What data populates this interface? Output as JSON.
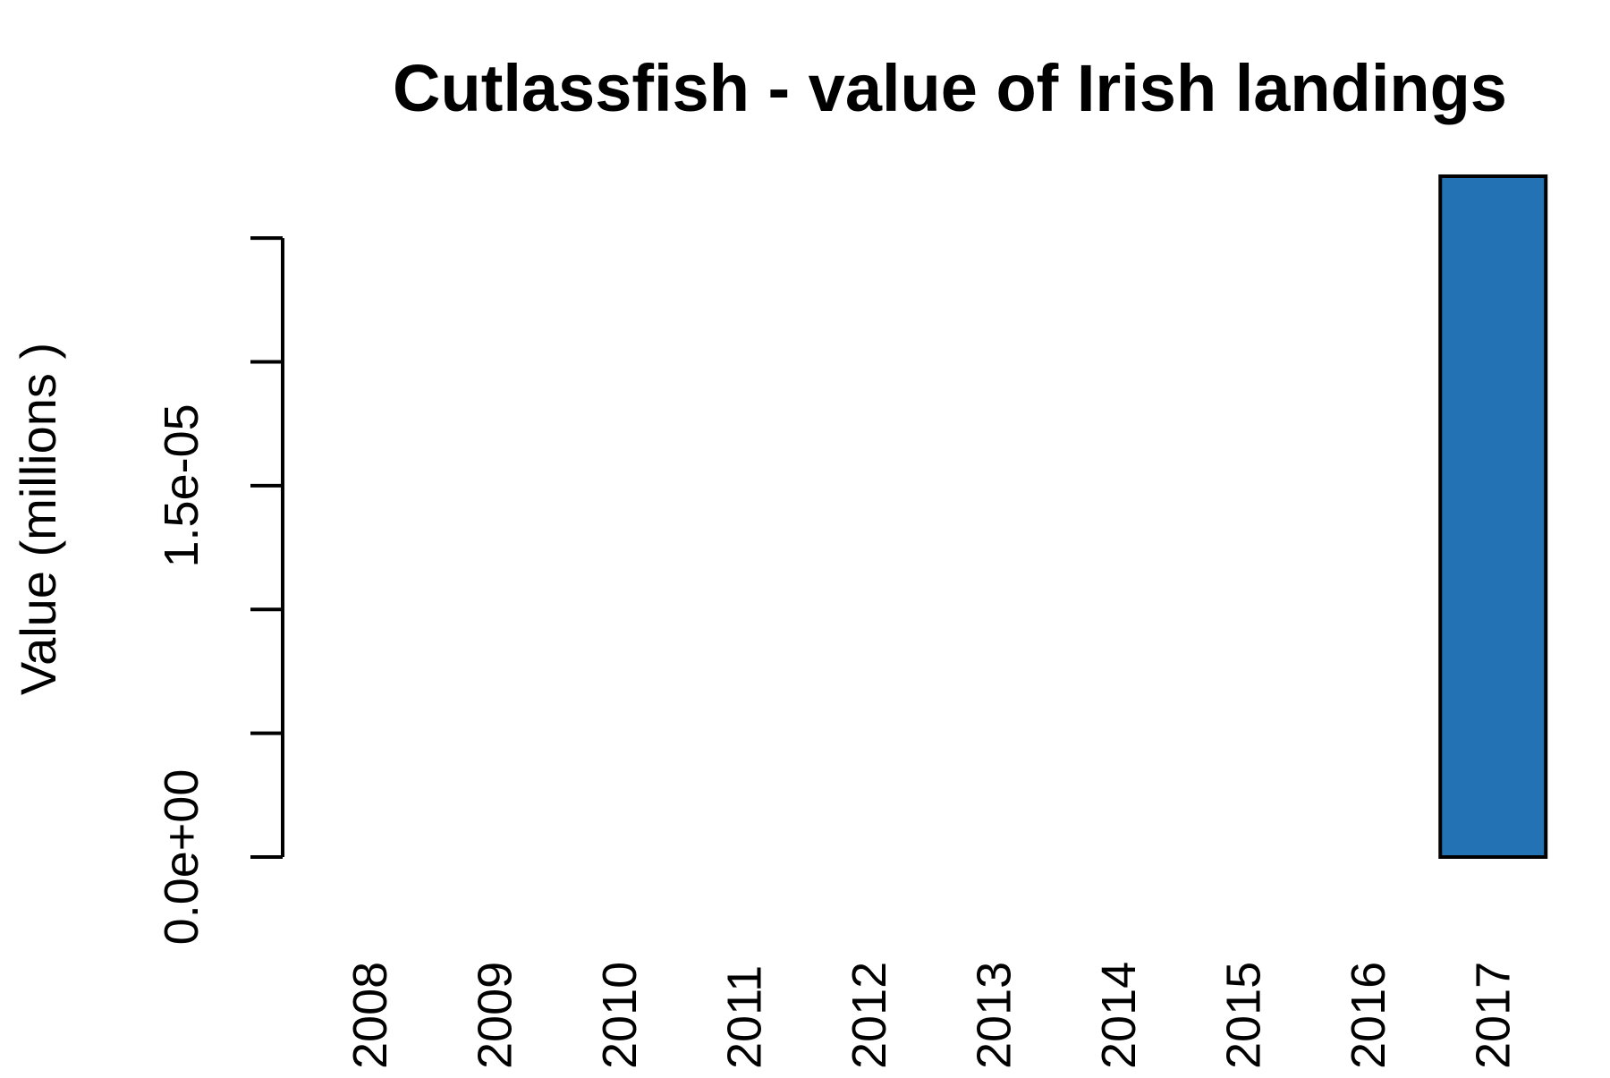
{
  "chart_data": {
    "type": "bar",
    "title": "Cutlassfish - value of Irish landings",
    "xlabel": "",
    "ylabel": "Value (millions )",
    "categories": [
      "2008",
      "2009",
      "2010",
      "2011",
      "2012",
      "2013",
      "2014",
      "2015",
      "2016",
      "2017"
    ],
    "values": [
      0,
      0,
      0,
      0,
      0,
      0,
      0,
      0,
      0,
      2.75e-05
    ],
    "ylim": [
      0,
      2.75e-05
    ],
    "yticks": [
      0,
      5e-06,
      1e-05,
      1.5e-05,
      2e-05,
      2.5e-05
    ],
    "ytick_labels": [
      "0.0e+00",
      "",
      "",
      "1.5e-05",
      "",
      ""
    ],
    "grid": false,
    "legend": "none",
    "bar_color": "#2372b4",
    "bar_edge_color": "#000000"
  }
}
